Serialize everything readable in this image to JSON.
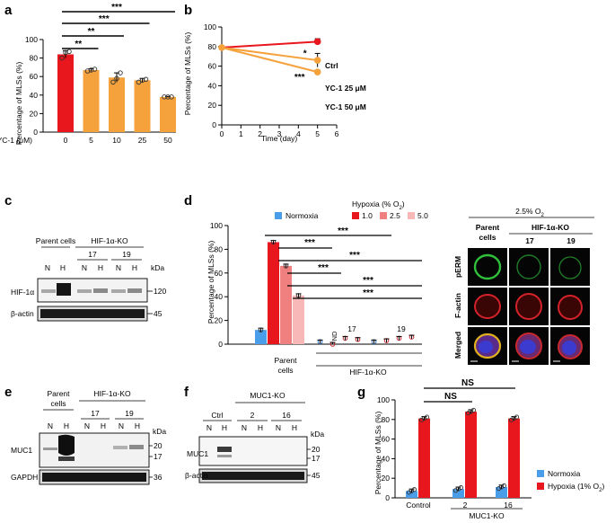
{
  "panels": {
    "a": {
      "label": "a",
      "chart_data": {
        "type": "bar",
        "ylabel": "Percentage of MLSs (%)",
        "xlabel": "YC-1 (μM)",
        "categories": [
          "0",
          "5",
          "10",
          "25",
          "50"
        ],
        "values": [
          84,
          67,
          59,
          56,
          38
        ],
        "errors": [
          4,
          1.5,
          5,
          2,
          0.5
        ],
        "points": [
          [
            80,
            86,
            87
          ],
          [
            66,
            67,
            68
          ],
          [
            54,
            58,
            64
          ],
          [
            54,
            56,
            57
          ],
          [
            38,
            38,
            38
          ]
        ],
        "colors": [
          "#e8161d",
          "#f5a13c",
          "#f5a13c",
          "#f5a13c",
          "#f5a13c"
        ],
        "ylim": [
          0,
          100
        ],
        "yticks": [
          0,
          20,
          40,
          60,
          80,
          100
        ],
        "ytick_labels": [
          "0",
          "20",
          "40",
          "60",
          "80",
          "100"
        ],
        "significance": [
          {
            "from": 0,
            "to": 1,
            "label": "**"
          },
          {
            "from": 0,
            "to": 2,
            "label": "**"
          },
          {
            "from": 0,
            "to": 3,
            "label": "***"
          },
          {
            "from": 0,
            "to": 4,
            "label": "***"
          }
        ]
      }
    },
    "b": {
      "label": "b",
      "chart_data": {
        "type": "line",
        "ylabel": "Percentage of MLSs (%)",
        "xlabel": "Time (day)",
        "xlim": [
          0,
          6
        ],
        "ylim": [
          0,
          100
        ],
        "xticks": [
          0,
          1,
          2,
          3,
          4,
          5,
          6
        ],
        "xtick_labels": [
          "0",
          "1",
          "2",
          "3",
          "4",
          "5",
          "6"
        ],
        "yticks": [
          0,
          20,
          40,
          60,
          80,
          100
        ],
        "ytick_labels": [
          "0",
          "20",
          "40",
          "60",
          "80",
          "100"
        ],
        "series": [
          {
            "name": "Ctrl",
            "color": "#e8161d",
            "x": [
              0,
              5
            ],
            "y": [
              79,
              85
            ],
            "err": [
              1,
              3
            ]
          },
          {
            "name": "YC-1 25 μM",
            "color": "#f5a13c",
            "x": [
              0,
              5
            ],
            "y": [
              79,
              66
            ],
            "err": [
              1,
              7
            ]
          },
          {
            "name": "YC-1 50 μM",
            "color": "#f5a13c",
            "x": [
              0,
              5
            ],
            "y": [
              79,
              54
            ],
            "err": [
              1,
              2
            ]
          }
        ],
        "significance": [
          "*",
          "***"
        ]
      }
    },
    "c": {
      "label": "c",
      "group_parent": "Parent cells",
      "group_ko": "HIF-1α-KO",
      "clones": [
        "17",
        "19"
      ],
      "lanes": [
        "N",
        "H",
        "N",
        "H",
        "N",
        "H"
      ],
      "kda_label": "kDa",
      "rows": [
        {
          "name": "HIF-1α",
          "kda": "120"
        },
        {
          "name": "β-actin",
          "kda": "45"
        }
      ]
    },
    "d": {
      "label": "d",
      "chart_data": {
        "type": "bar",
        "ylabel": "Percentage of MLSs (%)",
        "ylim": [
          0,
          100
        ],
        "yticks": [
          0,
          20,
          40,
          60,
          80,
          100
        ],
        "ytick_labels": [
          "0",
          "20",
          "40",
          "60",
          "80",
          "100"
        ],
        "legend_normoxia": "Normoxia",
        "legend_hypoxia_title": "Hypoxia (% O",
        "legend_hypoxia_sub": "2",
        "legend_hypoxia_close": ")",
        "series": [
          {
            "name": "Normoxia",
            "color": "#4a9de8"
          },
          {
            "name": "1.0",
            "color": "#e8161d"
          },
          {
            "name": "2.5",
            "color": "#f08080"
          },
          {
            "name": "5.0",
            "color": "#f8b8b8"
          }
        ],
        "groups": [
          "Parent cells",
          "17",
          "19"
        ],
        "group_parent_line1": "Parent",
        "group_parent_line2": "cells",
        "ko_label": "HIF-1α-KO",
        "values": [
          [
            12,
            86,
            66,
            41
          ],
          [
            2,
            0,
            5,
            4
          ],
          [
            2,
            3,
            5,
            6
          ]
        ],
        "nd_label": "ND",
        "significance": [
          "***",
          "***",
          "***",
          "***",
          "***",
          "***"
        ]
      }
    },
    "micro": {
      "condition": "2.5% O",
      "condition_sub": "2",
      "col_parent_line1": "Parent",
      "col_parent_line2": "cells",
      "col_ko": "HIF-1α-KO",
      "clones": [
        "17",
        "19"
      ],
      "rows": [
        "pERM",
        "F-actin",
        "Merged"
      ]
    },
    "e": {
      "label": "e",
      "group_parent_line1": "Parent",
      "group_parent_line2": "cells",
      "group_ko": "HIF-1α-KO",
      "clones": [
        "17",
        "19"
      ],
      "lanes": [
        "N",
        "H",
        "N",
        "H",
        "N",
        "H"
      ],
      "kda_label": "kDa",
      "rows": [
        {
          "name": "MUC1",
          "kda": [
            "20",
            "17"
          ]
        },
        {
          "name": "GAPDH",
          "kda": [
            "36"
          ]
        }
      ]
    },
    "f": {
      "label": "f",
      "group_ctrl": "Ctrl",
      "group_ko": "MUC1-KO",
      "clones": [
        "2",
        "16"
      ],
      "lanes": [
        "N",
        "H",
        "N",
        "H",
        "N",
        "H"
      ],
      "kda_label": "kDa",
      "rows": [
        {
          "name": "MUC1",
          "kda": [
            "20",
            "17"
          ]
        },
        {
          "name": "β-actin",
          "kda": [
            "45"
          ]
        }
      ]
    },
    "g": {
      "label": "g",
      "chart_data": {
        "type": "bar",
        "ylabel": "Percentage of MLSs (%)",
        "ylim": [
          0,
          100
        ],
        "yticks": [
          0,
          20,
          40,
          60,
          80,
          100
        ],
        "ytick_labels": [
          "0",
          "20",
          "40",
          "60",
          "80",
          "100"
        ],
        "categories": [
          "Control",
          "2",
          "16"
        ],
        "ko_label": "MUC1-KO",
        "series": [
          {
            "name": "Normoxia",
            "color": "#4a9de8",
            "values": [
              7,
              9,
              11
            ]
          },
          {
            "name": "Hypoxia (1% O2)",
            "color": "#e8161d",
            "values": [
              81,
              88,
              81
            ]
          }
        ],
        "legend_normoxia": "Normoxia",
        "legend_hypoxia": "Hypoxia (1% O",
        "legend_hypoxia_sub": "2",
        "legend_hypoxia_close": ")",
        "significance": [
          "NS",
          "NS"
        ]
      }
    }
  }
}
